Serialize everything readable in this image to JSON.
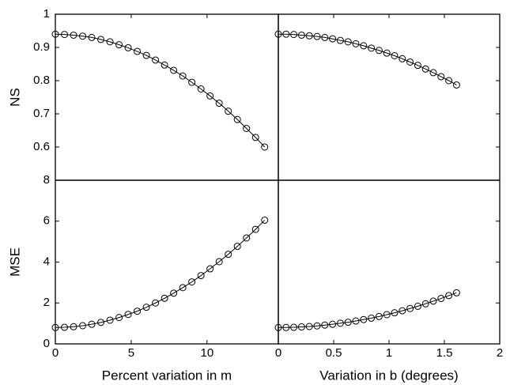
{
  "chart_data": [
    {
      "type": "line",
      "ylabel": "NS",
      "x": [
        0,
        0.6,
        1.2,
        1.8,
        2.4,
        3,
        3.6,
        4.2,
        4.8,
        5.4,
        6,
        6.6,
        7.2,
        7.8,
        8.4,
        9,
        9.6,
        10.2,
        10.8,
        11.4,
        12,
        12.6,
        13.2,
        13.8
      ],
      "series": [
        {
          "color": "#000000",
          "values": [
            0.94,
            0.939,
            0.937,
            0.934,
            0.93,
            0.924,
            0.917,
            0.908,
            0.899,
            0.888,
            0.876,
            0.862,
            0.847,
            0.831,
            0.814,
            0.795,
            0.775,
            0.754,
            0.732,
            0.708,
            0.683,
            0.656,
            0.629,
            0.6
          ]
        }
      ],
      "xlim": [
        0,
        14.7
      ],
      "ylim": [
        0.5,
        1
      ],
      "yticks": [
        0.6,
        0.7,
        0.8,
        0.9,
        1
      ]
    },
    {
      "type": "line",
      "x": [
        0,
        0.07,
        0.14,
        0.21,
        0.28,
        0.35,
        0.42,
        0.49,
        0.56,
        0.63,
        0.7,
        0.77,
        0.84,
        0.91,
        0.98,
        1.05,
        1.12,
        1.19,
        1.26,
        1.33,
        1.4,
        1.47,
        1.54,
        1.61
      ],
      "series": [
        {
          "color": "#000000",
          "values": [
            0.94,
            0.94,
            0.939,
            0.937,
            0.935,
            0.933,
            0.93,
            0.926,
            0.921,
            0.917,
            0.911,
            0.905,
            0.898,
            0.891,
            0.883,
            0.875,
            0.866,
            0.856,
            0.846,
            0.835,
            0.824,
            0.812,
            0.8,
            0.787
          ]
        }
      ],
      "xlim": [
        0,
        2
      ],
      "ylim": [
        0.5,
        1
      ]
    },
    {
      "type": "line",
      "ylabel": "MSE",
      "xlabel": "Percent variation in m",
      "x": [
        0,
        0.6,
        1.2,
        1.8,
        2.4,
        3,
        3.6,
        4.2,
        4.8,
        5.4,
        6,
        6.6,
        7.2,
        7.8,
        8.4,
        9,
        9.6,
        10.2,
        10.8,
        11.4,
        12,
        12.6,
        13.2,
        13.8
      ],
      "series": [
        {
          "color": "#000000",
          "values": [
            0.8,
            0.81,
            0.84,
            0.89,
            0.96,
            1.05,
            1.16,
            1.29,
            1.44,
            1.6,
            1.79,
            2.0,
            2.23,
            2.48,
            2.75,
            3.03,
            3.34,
            3.67,
            4.02,
            4.38,
            4.77,
            5.18,
            5.6,
            6.05
          ]
        }
      ],
      "xlim": [
        0,
        14.7
      ],
      "ylim": [
        0,
        8
      ],
      "xticks": [
        0,
        5,
        10
      ],
      "yticks": [
        0,
        2,
        4,
        6,
        8
      ]
    },
    {
      "type": "line",
      "xlabel": "Variation in b (degrees)",
      "x": [
        0,
        0.07,
        0.14,
        0.21,
        0.28,
        0.35,
        0.42,
        0.49,
        0.56,
        0.63,
        0.7,
        0.77,
        0.84,
        0.91,
        0.98,
        1.05,
        1.12,
        1.19,
        1.26,
        1.33,
        1.4,
        1.47,
        1.54,
        1.61
      ],
      "series": [
        {
          "color": "#000000",
          "values": [
            0.8,
            0.8,
            0.81,
            0.83,
            0.85,
            0.88,
            0.92,
            0.96,
            1.01,
            1.06,
            1.12,
            1.19,
            1.26,
            1.34,
            1.43,
            1.52,
            1.62,
            1.73,
            1.84,
            1.96,
            2.09,
            2.22,
            2.36,
            2.5
          ]
        }
      ],
      "xlim": [
        0,
        2
      ],
      "ylim": [
        0,
        8
      ],
      "xticks": [
        0,
        0.5,
        1,
        1.5,
        2
      ]
    }
  ]
}
